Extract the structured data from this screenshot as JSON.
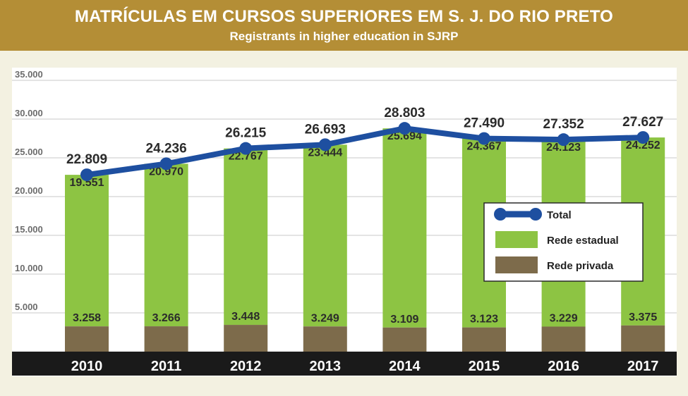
{
  "header": {
    "title": "MATRÍCULAS EM CURSOS SUPERIORES EM S. J. DO RIO PRETO",
    "subtitle": "Registrants in higher education in SJRP"
  },
  "colors": {
    "header_bg": "#b48e36",
    "estadual": "#8dc443",
    "privada": "#7d6b4b",
    "total": "#1e4fa0",
    "axis_band": "#1a1a1a"
  },
  "chart_data": {
    "type": "bar",
    "stacked": true,
    "categories": [
      "2010",
      "2011",
      "2012",
      "2013",
      "2014",
      "2015",
      "2016",
      "2017"
    ],
    "series": [
      {
        "name": "Rede privada",
        "values": [
          3258,
          3266,
          3448,
          3249,
          3109,
          3123,
          3229,
          3375
        ]
      },
      {
        "name": "Rede estadual",
        "values": [
          19551,
          20970,
          22767,
          23444,
          25694,
          24367,
          24123,
          24252
        ]
      }
    ],
    "line_series": {
      "name": "Total",
      "values": [
        22809,
        24236,
        26215,
        26693,
        28803,
        27490,
        27352,
        27627
      ]
    },
    "value_labels": {
      "privada": [
        "3.258",
        "3.266",
        "3.448",
        "3.249",
        "3.109",
        "3.123",
        "3.229",
        "3.375"
      ],
      "estadual": [
        "19.551",
        "20.970",
        "22.767",
        "23.444",
        "25.694",
        "24.367",
        "24.123",
        "24.252"
      ],
      "total": [
        "22.809",
        "24.236",
        "26.215",
        "26.693",
        "28.803",
        "27.490",
        "27.352",
        "27.627"
      ]
    },
    "yticks": [
      5000,
      10000,
      15000,
      20000,
      25000,
      30000,
      35000
    ],
    "ytick_labels": [
      "5.000",
      "10.000",
      "15.000",
      "20.000",
      "25.000",
      "30.000",
      "35.000"
    ],
    "ylim": [
      0,
      35000
    ],
    "grid": true,
    "legend": {
      "placement": "right",
      "entries": [
        "Total",
        "Rede estadual",
        "Rede privada"
      ]
    }
  }
}
